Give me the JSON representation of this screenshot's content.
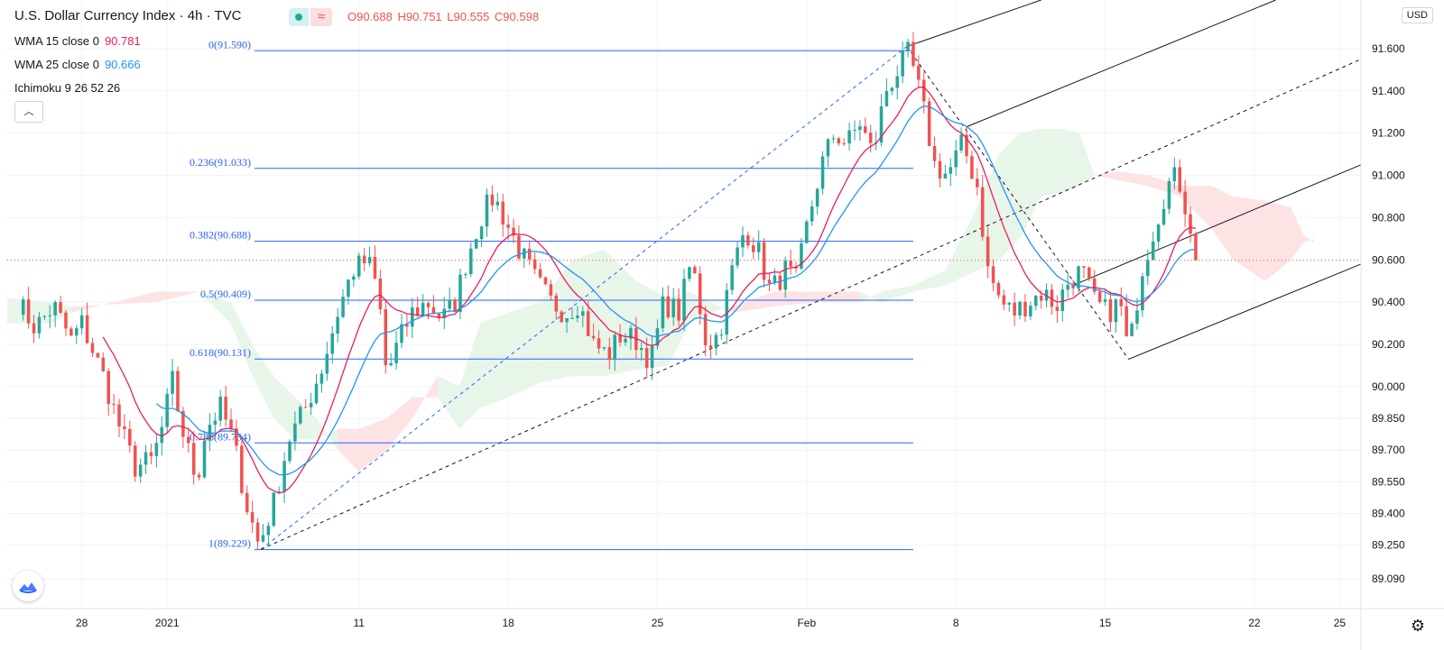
{
  "header": {
    "symbol_title": "U.S. Dollar Currency Index · 4h · TVC",
    "ohlc": {
      "o": "O90.688",
      "h": "H90.751",
      "l": "L90.555",
      "c": "C90.598"
    }
  },
  "indicators": [
    {
      "label": "WMA 15 close 0",
      "value": "90.781",
      "color": "#e91e63"
    },
    {
      "label": "WMA 25 close 0",
      "value": "90.666",
      "color": "#2196f3"
    },
    {
      "label": "Ichimoku 9 26 52 26",
      "value": "",
      "color": "#131722"
    }
  ],
  "currency_badge": "USD",
  "colors": {
    "up": "#26a69a",
    "down": "#ef5350",
    "fib": "#2962ff",
    "wma15": "#e91e63",
    "wma25": "#2196f3",
    "cloud_bull": "#e8f5e9",
    "cloud_bear": "#fde3e4"
  },
  "icons": {
    "collapse": "chevron-up-icon",
    "logo": "tradingview-logo-icon",
    "settings": "gear-icon"
  },
  "chart_data": {
    "type": "candlestick",
    "title": "U.S. Dollar Currency Index · 4h · TVC",
    "ylim": [
      88.95,
      91.83
    ],
    "y_ticks": [
      "91.600",
      "91.400",
      "91.200",
      "91.000",
      "90.800",
      "90.600",
      "90.400",
      "90.200",
      "90.000",
      "89.850",
      "89.700",
      "89.550",
      "89.400",
      "89.250",
      "89.090"
    ],
    "y_tick_values": [
      91.6,
      91.4,
      91.2,
      91.0,
      90.8,
      90.6,
      90.4,
      90.2,
      90.0,
      89.85,
      89.7,
      89.55,
      89.4,
      89.25,
      89.09
    ],
    "x_ticks": [
      {
        "label": "28",
        "t": 4.5
      },
      {
        "label": "2021",
        "t": 8.5
      },
      {
        "label": "11",
        "t": 17.5
      },
      {
        "label": "18",
        "t": 24.5
      },
      {
        "label": "25",
        "t": 31.5
      },
      {
        "label": "Feb",
        "t": 38.5
      },
      {
        "label": "8",
        "t": 45.5
      },
      {
        "label": "15",
        "t": 52.5
      },
      {
        "label": "22",
        "t": 59.5
      },
      {
        "label": "25",
        "t": 63.5
      }
    ],
    "x_domain": [
      1.0,
      64.5
    ],
    "current_price": 90.598,
    "fib_levels": [
      {
        "label": "0(91.590)",
        "value": 91.59
      },
      {
        "label": "0.236(91.033)",
        "value": 91.033
      },
      {
        "label": "0.382(90.688)",
        "value": 90.688
      },
      {
        "label": "0.5(90.409)",
        "value": 90.409
      },
      {
        "label": "0.618(90.131)",
        "value": 90.131
      },
      {
        "label": "0.786(89.734)",
        "value": 89.734
      },
      {
        "label": "1(89.229)",
        "value": 89.229
      }
    ],
    "fib_t_range": [
      12.6,
      43.5
    ],
    "trendlines": [
      {
        "style": "dashed",
        "color": "#2962ff",
        "points": [
          [
            12.9,
            89.23
          ],
          [
            43.2,
            91.61
          ]
        ]
      },
      {
        "style": "dashed",
        "color": "#131722",
        "points": [
          [
            12.9,
            89.23
          ],
          [
            64.5,
            91.55
          ]
        ]
      },
      {
        "style": "dashed",
        "color": "#131722",
        "points": [
          [
            43.2,
            91.61
          ],
          [
            53.6,
            90.13
          ]
        ]
      },
      {
        "style": "solid",
        "color": "#131722",
        "points": [
          [
            43.2,
            91.61
          ],
          [
            49.5,
            91.83
          ]
        ]
      },
      {
        "style": "solid",
        "color": "#131722",
        "points": [
          [
            46.0,
            91.23
          ],
          [
            60.5,
            91.83
          ]
        ]
      },
      {
        "style": "solid",
        "color": "#131722",
        "points": [
          [
            51.0,
            90.48
          ],
          [
            64.5,
            91.05
          ]
        ]
      },
      {
        "style": "solid",
        "color": "#131722",
        "points": [
          [
            53.6,
            90.13
          ],
          [
            64.5,
            90.58
          ]
        ]
      }
    ],
    "anchors": [
      {
        "t": 1.5,
        "v": 90.4
      },
      {
        "t": 2.3,
        "v": 90.28
      },
      {
        "t": 3.2,
        "v": 90.38
      },
      {
        "t": 4.0,
        "v": 90.22
      },
      {
        "t": 4.5,
        "v": 90.3
      },
      {
        "t": 5.5,
        "v": 90.05
      },
      {
        "t": 6.3,
        "v": 89.8
      },
      {
        "t": 7.0,
        "v": 89.62
      },
      {
        "t": 7.8,
        "v": 89.65
      },
      {
        "t": 8.4,
        "v": 89.85
      },
      {
        "t": 8.7,
        "v": 90.05
      },
      {
        "t": 9.2,
        "v": 89.8
      },
      {
        "t": 9.9,
        "v": 89.55
      },
      {
        "t": 10.3,
        "v": 89.8
      },
      {
        "t": 11.0,
        "v": 89.9
      },
      {
        "t": 11.6,
        "v": 89.75
      },
      {
        "t": 12.2,
        "v": 89.45
      },
      {
        "t": 12.8,
        "v": 89.25
      },
      {
        "t": 13.5,
        "v": 89.45
      },
      {
        "t": 14.2,
        "v": 89.75
      },
      {
        "t": 15.0,
        "v": 89.9
      },
      {
        "t": 15.8,
        "v": 90.1
      },
      {
        "t": 16.5,
        "v": 90.35
      },
      {
        "t": 17.2,
        "v": 90.55
      },
      {
        "t": 17.9,
        "v": 90.6
      },
      {
        "t": 18.4,
        "v": 90.45
      },
      {
        "t": 18.8,
        "v": 90.05
      },
      {
        "t": 19.3,
        "v": 90.2
      },
      {
        "t": 20.0,
        "v": 90.35
      },
      {
        "t": 20.7,
        "v": 90.4
      },
      {
        "t": 21.4,
        "v": 90.32
      },
      {
        "t": 22.0,
        "v": 90.4
      },
      {
        "t": 22.6,
        "v": 90.62
      },
      {
        "t": 23.2,
        "v": 90.8
      },
      {
        "t": 23.8,
        "v": 90.9
      },
      {
        "t": 24.3,
        "v": 90.8
      },
      {
        "t": 25.0,
        "v": 90.65
      },
      {
        "t": 25.8,
        "v": 90.5
      },
      {
        "t": 26.5,
        "v": 90.4
      },
      {
        "t": 27.2,
        "v": 90.35
      },
      {
        "t": 27.8,
        "v": 90.4
      },
      {
        "t": 28.5,
        "v": 90.2
      },
      {
        "t": 29.2,
        "v": 90.15
      },
      {
        "t": 29.8,
        "v": 90.25
      },
      {
        "t": 30.5,
        "v": 90.22
      },
      {
        "t": 31.2,
        "v": 90.12
      },
      {
        "t": 31.8,
        "v": 90.4
      },
      {
        "t": 32.5,
        "v": 90.35
      },
      {
        "t": 33.1,
        "v": 90.6
      },
      {
        "t": 33.8,
        "v": 90.2
      },
      {
        "t": 34.4,
        "v": 90.25
      },
      {
        "t": 35.0,
        "v": 90.55
      },
      {
        "t": 35.6,
        "v": 90.75
      },
      {
        "t": 36.2,
        "v": 90.65
      },
      {
        "t": 36.8,
        "v": 90.45
      },
      {
        "t": 37.5,
        "v": 90.55
      },
      {
        "t": 38.0,
        "v": 90.5
      },
      {
        "t": 38.6,
        "v": 90.8
      },
      {
        "t": 39.2,
        "v": 91.05
      },
      {
        "t": 39.8,
        "v": 91.2
      },
      {
        "t": 40.4,
        "v": 91.15
      },
      {
        "t": 41.0,
        "v": 91.25
      },
      {
        "t": 41.6,
        "v": 91.1
      },
      {
        "t": 42.2,
        "v": 91.4
      },
      {
        "t": 42.8,
        "v": 91.5
      },
      {
        "t": 43.3,
        "v": 91.58
      },
      {
        "t": 43.9,
        "v": 91.35
      },
      {
        "t": 44.5,
        "v": 91.05
      },
      {
        "t": 45.1,
        "v": 91.0
      },
      {
        "t": 45.8,
        "v": 91.15
      },
      {
        "t": 46.5,
        "v": 90.95
      },
      {
        "t": 47.0,
        "v": 90.55
      },
      {
        "t": 47.6,
        "v": 90.4
      },
      {
        "t": 48.2,
        "v": 90.35
      },
      {
        "t": 48.9,
        "v": 90.4
      },
      {
        "t": 49.6,
        "v": 90.45
      },
      {
        "t": 50.2,
        "v": 90.38
      },
      {
        "t": 50.8,
        "v": 90.5
      },
      {
        "t": 51.4,
        "v": 90.55
      },
      {
        "t": 52.0,
        "v": 90.4
      },
      {
        "t": 52.6,
        "v": 90.35
      },
      {
        "t": 53.2,
        "v": 90.4
      },
      {
        "t": 53.6,
        "v": 90.15
      },
      {
        "t": 54.2,
        "v": 90.55
      },
      {
        "t": 54.8,
        "v": 90.75
      },
      {
        "t": 55.4,
        "v": 90.95
      },
      {
        "t": 55.9,
        "v": 91.0
      },
      {
        "t": 56.4,
        "v": 90.8
      },
      {
        "t": 56.9,
        "v": 90.6
      }
    ],
    "cloud": [
      {
        "t": 1.0,
        "a": 90.42,
        "b": 90.3
      },
      {
        "t": 3.0,
        "a": 90.4,
        "b": 90.3
      },
      {
        "t": 4.0,
        "a": 90.38,
        "b": 90.35
      },
      {
        "t": 8.0,
        "a": 90.4,
        "b": 90.45
      },
      {
        "t": 10.0,
        "a": 90.45,
        "b": 90.45
      },
      {
        "t": 11.5,
        "a": 90.4,
        "b": 90.3
      },
      {
        "t": 12.5,
        "a": 90.2,
        "b": 90.05
      },
      {
        "t": 13.5,
        "a": 90.05,
        "b": 89.85
      },
      {
        "t": 14.5,
        "a": 89.95,
        "b": 89.75
      },
      {
        "t": 15.5,
        "a": 89.85,
        "b": 89.75
      },
      {
        "t": 16.5,
        "a": 89.7,
        "b": 89.8
      },
      {
        "t": 17.5,
        "a": 89.6,
        "b": 89.8
      },
      {
        "t": 18.8,
        "a": 89.7,
        "b": 89.85
      },
      {
        "t": 20.0,
        "a": 89.85,
        "b": 89.95
      },
      {
        "t": 21.2,
        "a": 90.05,
        "b": 89.95
      },
      {
        "t": 22.2,
        "a": 90.0,
        "b": 89.8
      },
      {
        "t": 23.2,
        "a": 90.3,
        "b": 89.9
      },
      {
        "t": 24.5,
        "a": 90.35,
        "b": 89.95
      },
      {
        "t": 26.0,
        "a": 90.4,
        "b": 90.02
      },
      {
        "t": 27.5,
        "a": 90.6,
        "b": 90.05
      },
      {
        "t": 29.0,
        "a": 90.65,
        "b": 90.05
      },
      {
        "t": 30.5,
        "a": 90.5,
        "b": 90.08
      },
      {
        "t": 32.0,
        "a": 90.42,
        "b": 90.1
      },
      {
        "t": 33.0,
        "a": 90.45,
        "b": 90.3
      },
      {
        "t": 34.0,
        "a": 90.4,
        "b": 90.35
      },
      {
        "t": 35.0,
        "a": 90.35,
        "b": 90.38
      },
      {
        "t": 37.0,
        "a": 90.38,
        "b": 90.45
      },
      {
        "t": 39.0,
        "a": 90.4,
        "b": 90.45
      },
      {
        "t": 41.0,
        "a": 90.4,
        "b": 90.45
      },
      {
        "t": 42.0,
        "a": 90.45,
        "b": 90.4
      },
      {
        "t": 43.5,
        "a": 90.48,
        "b": 90.45
      },
      {
        "t": 45.0,
        "a": 90.55,
        "b": 90.48
      },
      {
        "t": 46.5,
        "a": 90.85,
        "b": 90.55
      },
      {
        "t": 47.5,
        "a": 91.1,
        "b": 90.6
      },
      {
        "t": 48.5,
        "a": 91.2,
        "b": 90.7
      },
      {
        "t": 49.5,
        "a": 91.22,
        "b": 90.9
      },
      {
        "t": 50.5,
        "a": 91.22,
        "b": 90.92
      },
      {
        "t": 51.3,
        "a": 91.2,
        "b": 90.95
      },
      {
        "t": 52.0,
        "a": 91.0,
        "b": 91.0
      },
      {
        "t": 53.0,
        "a": 90.98,
        "b": 91.02
      },
      {
        "t": 54.5,
        "a": 90.95,
        "b": 91.0
      },
      {
        "t": 56.0,
        "a": 90.9,
        "b": 90.95
      },
      {
        "t": 57.5,
        "a": 90.75,
        "b": 90.95
      },
      {
        "t": 58.5,
        "a": 90.6,
        "b": 90.9
      },
      {
        "t": 60.0,
        "a": 90.5,
        "b": 90.88
      },
      {
        "t": 61.2,
        "a": 90.6,
        "b": 90.85
      },
      {
        "t": 61.8,
        "a": 90.68,
        "b": 90.72
      },
      {
        "t": 62.3,
        "a": 90.7,
        "b": 90.68
      }
    ]
  }
}
